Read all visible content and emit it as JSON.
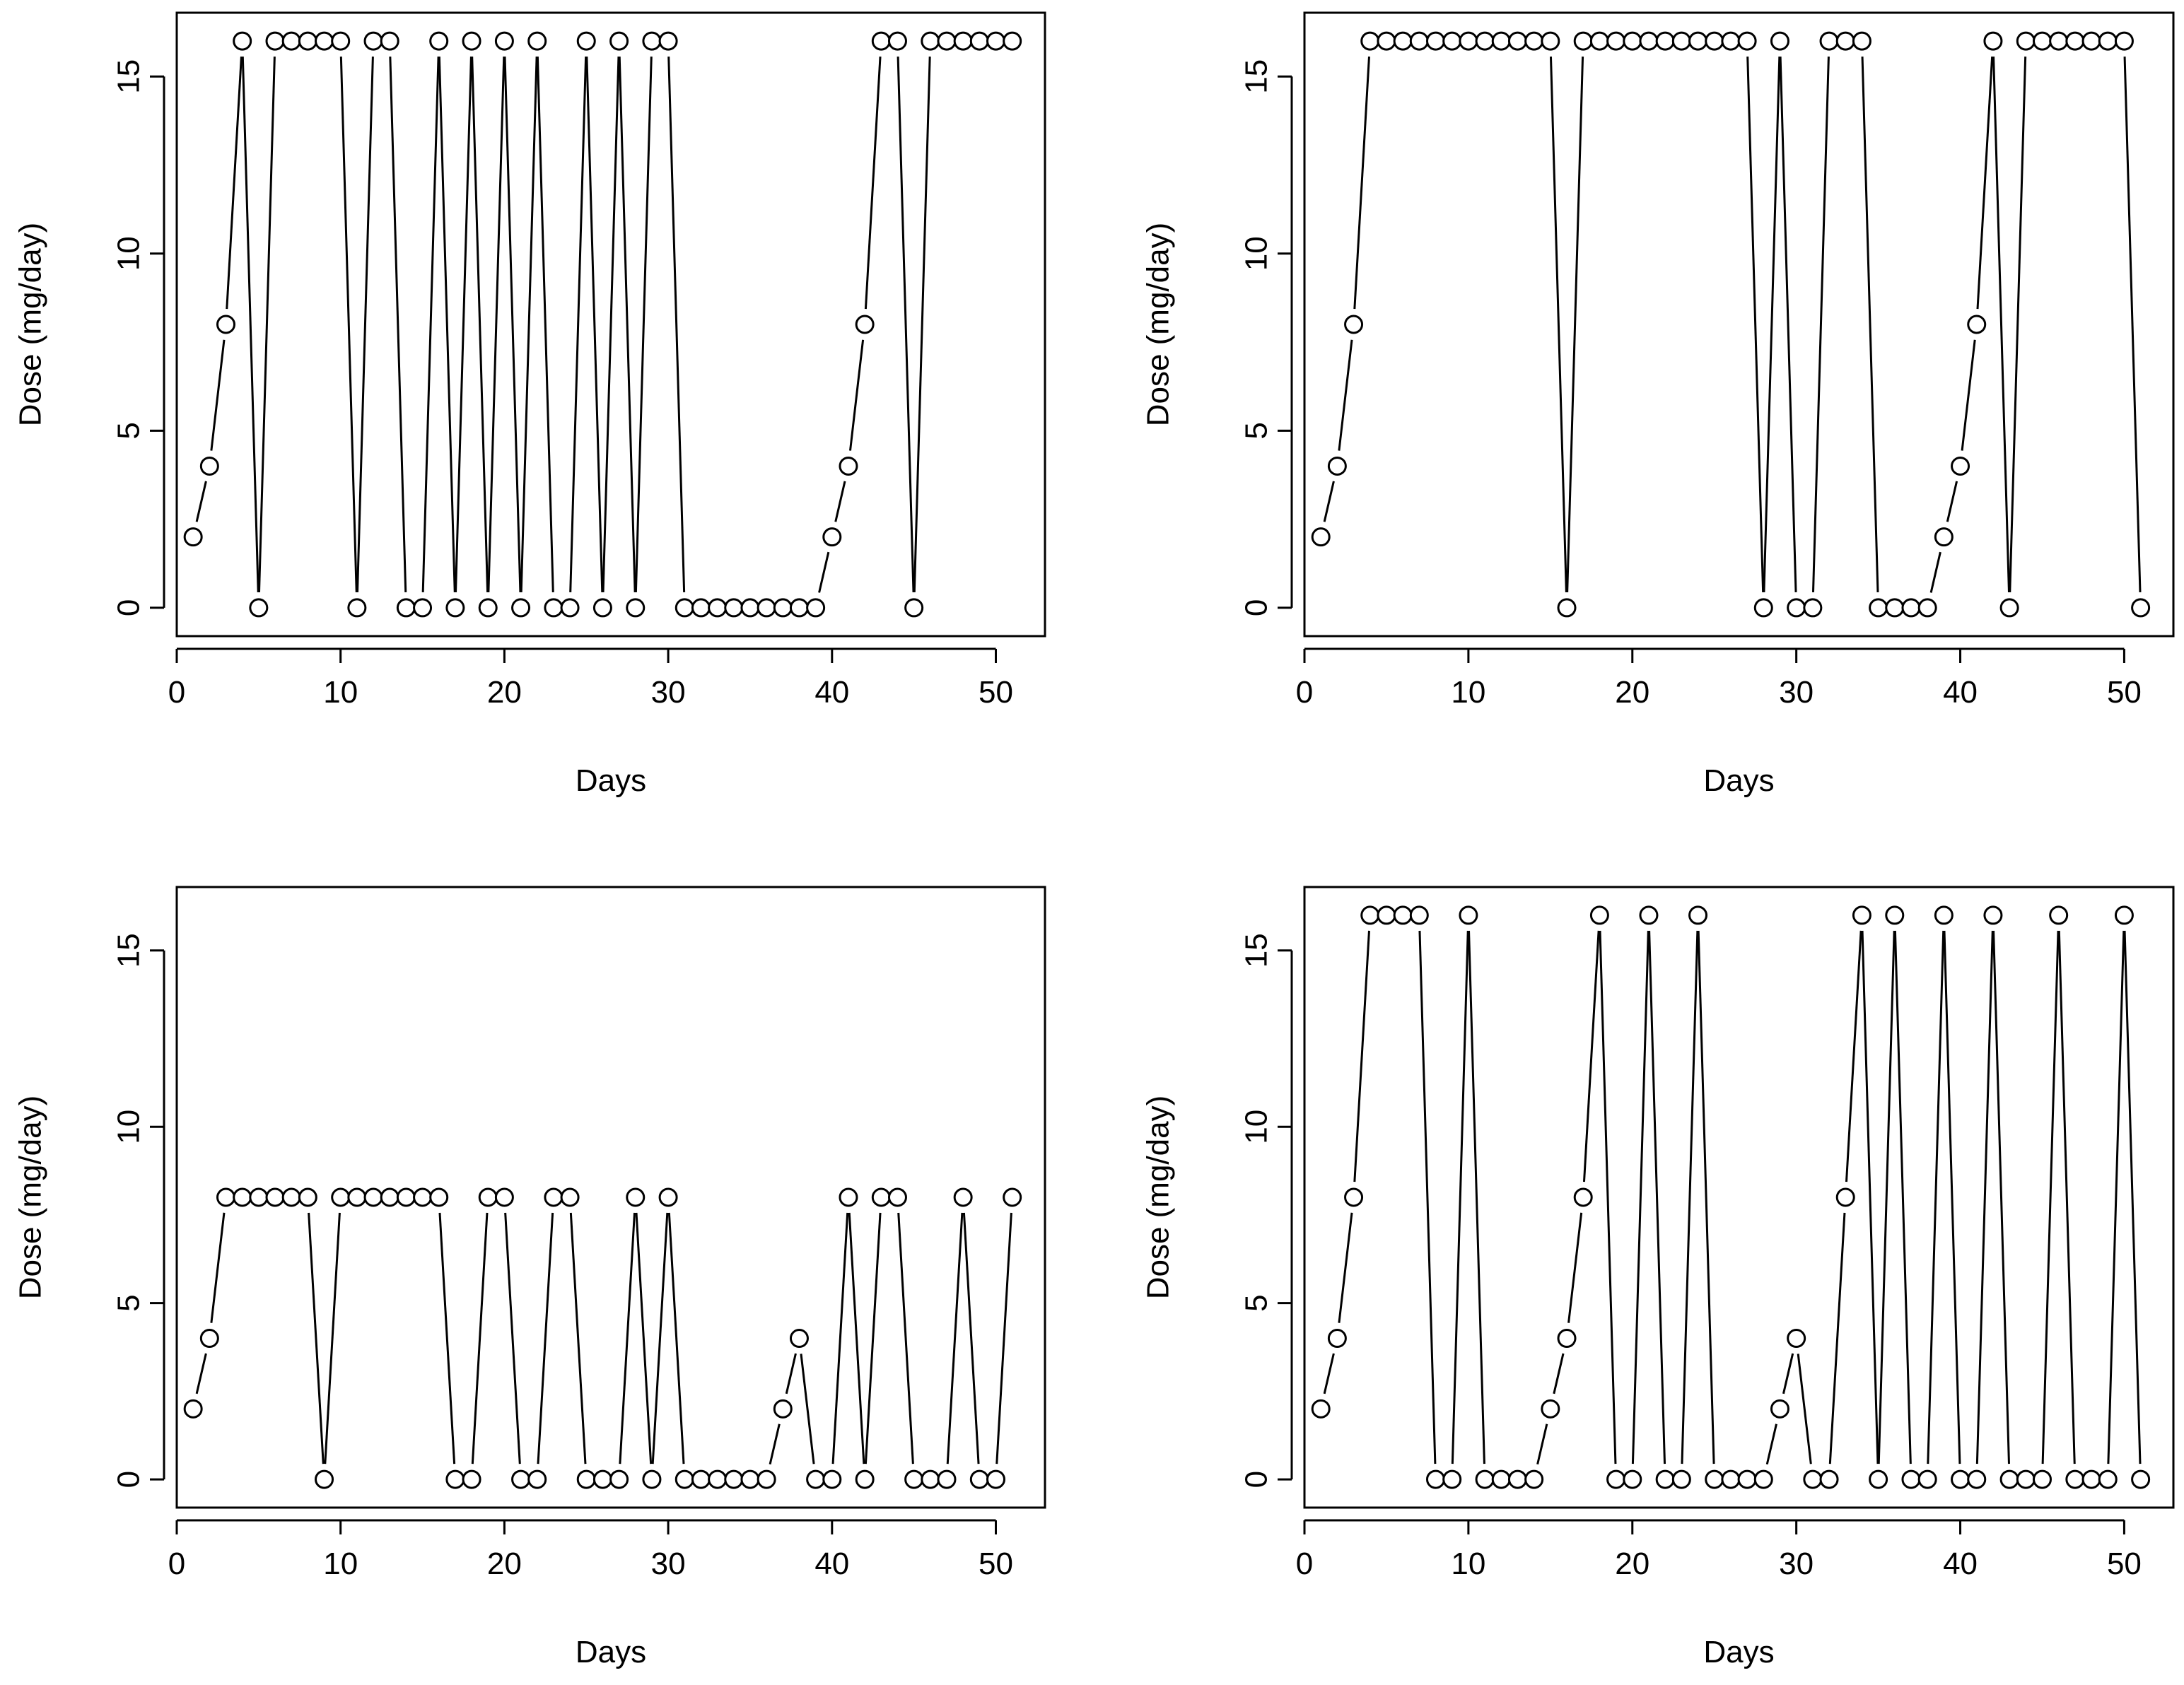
{
  "chart_data": [
    {
      "type": "line",
      "title": "",
      "xlabel": "Days",
      "ylabel": "Dose (mg/day)",
      "xlim": [
        0,
        53
      ],
      "ylim": [
        -0.8,
        16.8
      ],
      "xticks": [
        0,
        10,
        20,
        30,
        40,
        50
      ],
      "yticks": [
        0,
        5,
        10,
        15
      ],
      "grid": false,
      "x": [
        1,
        2,
        3,
        4,
        5,
        6,
        7,
        8,
        9,
        10,
        11,
        12,
        13,
        14,
        15,
        16,
        17,
        18,
        19,
        20,
        21,
        22,
        23,
        24,
        25,
        26,
        27,
        28,
        29,
        30,
        31,
        32,
        33,
        34,
        35,
        36,
        37,
        38,
        39,
        40,
        41,
        42,
        43,
        44,
        45,
        46,
        47,
        48,
        49,
        50,
        51
      ],
      "series": [
        {
          "name": "dose",
          "values": [
            2,
            4,
            8,
            16,
            0,
            16,
            16,
            16,
            16,
            16,
            0,
            16,
            16,
            0,
            0,
            16,
            0,
            16,
            0,
            16,
            0,
            16,
            0,
            0,
            16,
            0,
            16,
            0,
            16,
            16,
            0,
            0,
            0,
            0,
            0,
            0,
            0,
            0,
            0,
            2,
            4,
            8,
            16,
            16,
            0,
            16,
            16,
            16,
            16,
            16,
            16
          ]
        }
      ]
    },
    {
      "type": "line",
      "title": "",
      "xlabel": "Days",
      "ylabel": "Dose (mg/day)",
      "xlim": [
        0,
        53
      ],
      "ylim": [
        -0.8,
        16.8
      ],
      "xticks": [
        0,
        10,
        20,
        30,
        40,
        50
      ],
      "yticks": [
        0,
        5,
        10,
        15
      ],
      "grid": false,
      "x": [
        1,
        2,
        3,
        4,
        5,
        6,
        7,
        8,
        9,
        10,
        11,
        12,
        13,
        14,
        15,
        16,
        17,
        18,
        19,
        20,
        21,
        22,
        23,
        24,
        25,
        26,
        27,
        28,
        29,
        30,
        31,
        32,
        33,
        34,
        35,
        36,
        37,
        38,
        39,
        40,
        41,
        42,
        43,
        44,
        45,
        46,
        47,
        48,
        49,
        50,
        51
      ],
      "series": [
        {
          "name": "dose",
          "values": [
            2,
            4,
            8,
            16,
            16,
            16,
            16,
            16,
            16,
            16,
            16,
            16,
            16,
            16,
            16,
            0,
            16,
            16,
            16,
            16,
            16,
            16,
            16,
            16,
            16,
            16,
            16,
            0,
            16,
            0,
            0,
            16,
            16,
            16,
            0,
            0,
            0,
            0,
            2,
            4,
            8,
            16,
            0,
            16,
            16,
            16,
            16,
            16,
            16,
            16,
            0
          ]
        }
      ]
    },
    {
      "type": "line",
      "title": "",
      "xlabel": "Days",
      "ylabel": "Dose (mg/day)",
      "xlim": [
        0,
        53
      ],
      "ylim": [
        -0.8,
        16.8
      ],
      "xticks": [
        0,
        10,
        20,
        30,
        40,
        50
      ],
      "yticks": [
        0,
        5,
        10,
        15
      ],
      "grid": false,
      "x": [
        1,
        2,
        3,
        4,
        5,
        6,
        7,
        8,
        9,
        10,
        11,
        12,
        13,
        14,
        15,
        16,
        17,
        18,
        19,
        20,
        21,
        22,
        23,
        24,
        25,
        26,
        27,
        28,
        29,
        30,
        31,
        32,
        33,
        34,
        35,
        36,
        37,
        38,
        39,
        40,
        41,
        42,
        43,
        44,
        45,
        46,
        47,
        48,
        49,
        50,
        51
      ],
      "series": [
        {
          "name": "dose",
          "values": [
            2,
            4,
            8,
            8,
            8,
            8,
            8,
            8,
            0,
            8,
            8,
            8,
            8,
            8,
            8,
            8,
            0,
            0,
            8,
            8,
            0,
            0,
            8,
            8,
            0,
            0,
            0,
            8,
            0,
            8,
            0,
            0,
            0,
            0,
            0,
            0,
            2,
            4,
            0,
            0,
            8,
            0,
            8,
            8,
            0,
            0,
            0,
            8,
            0,
            0,
            8
          ]
        }
      ]
    },
    {
      "type": "line",
      "title": "",
      "xlabel": "Days",
      "ylabel": "Dose (mg/day)",
      "xlim": [
        0,
        53
      ],
      "ylim": [
        -0.8,
        16.8
      ],
      "xticks": [
        0,
        10,
        20,
        30,
        40,
        50
      ],
      "yticks": [
        0,
        5,
        10,
        15
      ],
      "grid": false,
      "x": [
        1,
        2,
        3,
        4,
        5,
        6,
        7,
        8,
        9,
        10,
        11,
        12,
        13,
        14,
        15,
        16,
        17,
        18,
        19,
        20,
        21,
        22,
        23,
        24,
        25,
        26,
        27,
        28,
        29,
        30,
        31,
        32,
        33,
        34,
        35,
        36,
        37,
        38,
        39,
        40,
        41,
        42,
        43,
        44,
        45,
        46,
        47,
        48,
        49,
        50,
        51
      ],
      "series": [
        {
          "name": "dose",
          "values": [
            2,
            4,
            8,
            16,
            16,
            16,
            16,
            0,
            0,
            16,
            0,
            0,
            0,
            0,
            2,
            4,
            8,
            16,
            0,
            0,
            16,
            0,
            0,
            16,
            0,
            0,
            0,
            0,
            2,
            4,
            0,
            0,
            8,
            16,
            0,
            16,
            0,
            0,
            16,
            0,
            0,
            16,
            0,
            0,
            0,
            16,
            0,
            0,
            0,
            16,
            0
          ]
        }
      ]
    }
  ]
}
